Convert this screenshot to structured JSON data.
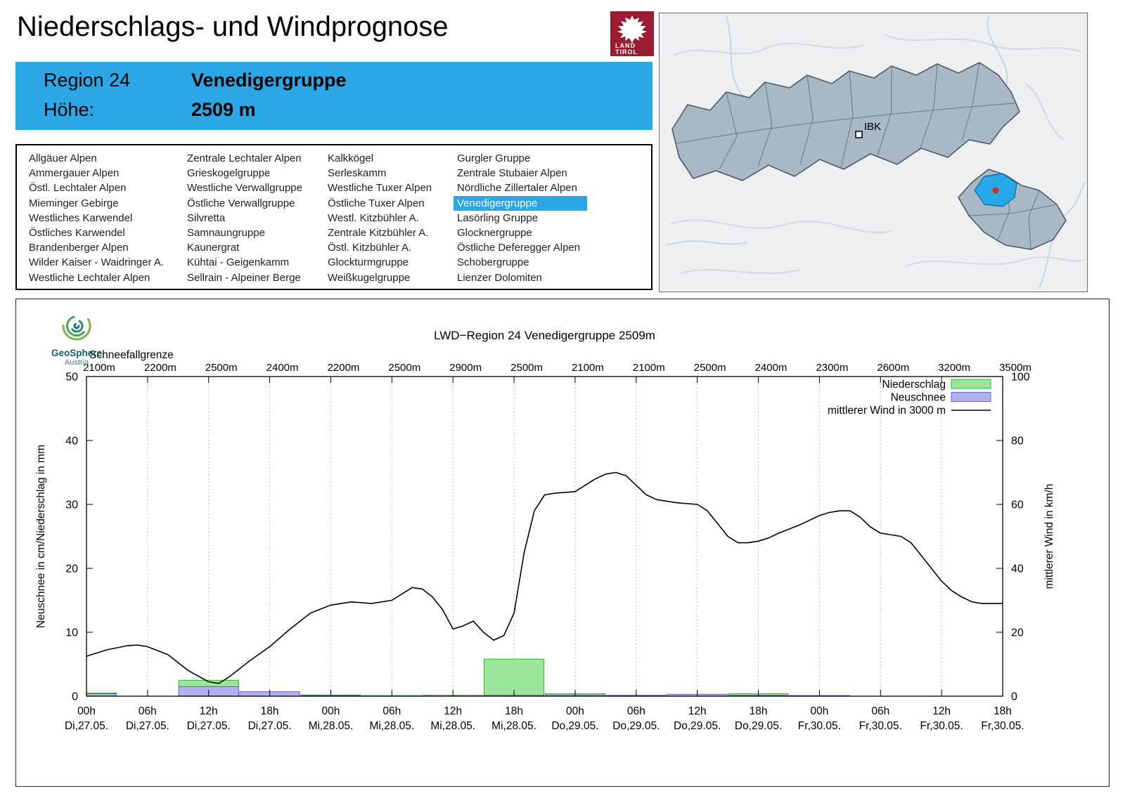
{
  "header": {
    "title": "Niederschlags- und Windprognose",
    "logo_line1": "LAND",
    "logo_line2": "TIROL"
  },
  "region_info": {
    "region_label": "Region 24",
    "region_name": "Venedigergruppe",
    "altitude_label": "Höhe:",
    "altitude_value": "2509 m"
  },
  "region_list": {
    "selected": "Venedigergruppe",
    "columns": [
      [
        "Allgäuer Alpen",
        "Ammergauer Alpen",
        "Östl. Lechtaler Alpen",
        "Mieminger Gebirge",
        "Westliches Karwendel",
        "Östliches Karwendel",
        "Brandenberger Alpen",
        "Wilder Kaiser - Waidringer A.",
        "Westliche Lechtaler Alpen"
      ],
      [
        "Zentrale Lechtaler Alpen",
        "Grieskogelgruppe",
        "Westliche Verwallgruppe",
        "Östliche Verwallgruppe",
        "Silvretta",
        "Samnaungruppe",
        "Kaunergrat",
        "Kühtai - Geigenkamm",
        "Sellrain - Alpeiner Berge"
      ],
      [
        "Kalkkögel",
        "Serleskamm",
        "Westliche Tuxer Alpen",
        "Östliche Tuxer Alpen",
        "Westl. Kitzbühler A.",
        "Zentrale Kitzbühler A.",
        "Östl. Kitzbühler A.",
        "Glockturmgruppe",
        "Weißkugelgruppe"
      ],
      [
        "Gurgler Gruppe",
        "Zentrale Stubaier Alpen",
        "Nördliche Zillertaler Alpen",
        "Venedigergruppe",
        "Lasörling Gruppe",
        "Glocknergruppe",
        "Östliche Deferegger Alpen",
        "Schobergruppe",
        "Lienzer Dolomiten"
      ]
    ]
  },
  "map": {
    "city_label": "IBK",
    "highlight_color": "#29a8e8"
  },
  "chart": {
    "brand": "GeoSphere",
    "brand_sub": "Austria"
  },
  "chart_data": {
    "type": "bar",
    "title": "LWD−Region 24 Venedigergruppe 2509m",
    "snowline_label": "Schneefallgrenze",
    "snowline_values": [
      "2100m",
      "2200m",
      "2500m",
      "2400m",
      "2200m",
      "2500m",
      "2900m",
      "2500m",
      "2100m",
      "2100m",
      "2500m",
      "2400m",
      "2300m",
      "2600m",
      "3200m",
      "3500m"
    ],
    "ylabel_left": "Neuschnee in cm/Niederschlag in mm",
    "ylabel_right": "mittlerer Wind in km/h",
    "ylim_left": [
      0,
      50
    ],
    "ylim_right": [
      0,
      100
    ],
    "yticks_left": [
      0,
      10,
      20,
      30,
      40,
      50
    ],
    "yticks_right": [
      0,
      20,
      40,
      60,
      80,
      100
    ],
    "x_hours_max": 90,
    "x_tick_hours": [
      0,
      6,
      12,
      18,
      24,
      30,
      36,
      42,
      48,
      54,
      60,
      66,
      72,
      78,
      84,
      90
    ],
    "x_tick_time": [
      "00h",
      "06h",
      "12h",
      "18h",
      "00h",
      "06h",
      "12h",
      "18h",
      "00h",
      "06h",
      "12h",
      "18h",
      "00h",
      "06h",
      "12h",
      "18h"
    ],
    "x_tick_date": [
      "Di,27.05.",
      "Di,27.05.",
      "Di,27.05.",
      "Di,27.05.",
      "Mi,28.05.",
      "Mi,28.05.",
      "Mi,28.05.",
      "Mi,28.05.",
      "Do,29.05.",
      "Do,29.05.",
      "Do,29.05.",
      "Do,29.05.",
      "Fr,30.05.",
      "Fr,30.05.",
      "Fr,30.05.",
      "Fr,30.05."
    ],
    "series": [
      {
        "name": "Niederschlag",
        "type": "bar",
        "axis": "left",
        "color": "#9ce69c",
        "border": "#2db82d",
        "values": [
          0.5,
          0,
          2.5,
          0.2,
          0.2,
          0.1,
          0.15,
          5.8,
          0.4,
          0.15,
          0.2,
          0.4,
          0.1,
          0,
          0,
          0
        ]
      },
      {
        "name": "Neuschnee",
        "type": "bar",
        "axis": "left",
        "color": "#b0b0ee",
        "border": "#6060d8",
        "values": [
          0.4,
          0,
          1.5,
          0.7,
          0.1,
          0,
          0,
          0.15,
          0.2,
          0.1,
          0.3,
          0.15,
          0.1,
          0,
          0,
          0
        ]
      },
      {
        "name": "mittlerer Wind in 3000 m",
        "type": "line",
        "axis": "right",
        "color": "#000000",
        "points": [
          [
            0,
            12.5
          ],
          [
            2,
            14.5
          ],
          [
            4,
            15.8
          ],
          [
            5,
            16
          ],
          [
            6,
            15.5
          ],
          [
            8,
            13
          ],
          [
            10,
            8
          ],
          [
            12,
            4.5
          ],
          [
            13,
            4
          ],
          [
            14,
            6
          ],
          [
            16,
            11
          ],
          [
            18,
            15.5
          ],
          [
            20,
            21
          ],
          [
            22,
            26
          ],
          [
            24,
            28.5
          ],
          [
            26,
            29.5
          ],
          [
            28,
            29
          ],
          [
            30,
            30
          ],
          [
            31,
            32
          ],
          [
            32,
            34
          ],
          [
            33,
            33.5
          ],
          [
            34,
            31
          ],
          [
            35,
            27
          ],
          [
            36,
            21
          ],
          [
            37,
            22
          ],
          [
            38,
            23.5
          ],
          [
            39,
            20
          ],
          [
            40,
            17.5
          ],
          [
            41,
            19
          ],
          [
            42,
            26
          ],
          [
            43,
            45
          ],
          [
            44,
            58
          ],
          [
            45,
            63
          ],
          [
            46,
            63.5
          ],
          [
            48,
            64
          ],
          [
            50,
            68
          ],
          [
            51,
            69.5
          ],
          [
            52,
            70
          ],
          [
            53,
            69
          ],
          [
            54,
            66
          ],
          [
            55,
            63
          ],
          [
            56,
            61.5
          ],
          [
            58,
            60.5
          ],
          [
            60,
            60
          ],
          [
            61,
            58
          ],
          [
            62,
            54
          ],
          [
            63,
            50
          ],
          [
            64,
            48
          ],
          [
            65,
            48
          ],
          [
            66,
            48.5
          ],
          [
            67,
            49.5
          ],
          [
            68,
            51
          ],
          [
            70,
            53.5
          ],
          [
            72,
            56.5
          ],
          [
            73,
            57.5
          ],
          [
            74,
            58
          ],
          [
            75,
            58
          ],
          [
            76,
            56
          ],
          [
            77,
            53
          ],
          [
            78,
            51
          ],
          [
            80,
            50
          ],
          [
            81,
            48
          ],
          [
            82,
            44
          ],
          [
            83,
            40
          ],
          [
            84,
            36
          ],
          [
            85,
            33
          ],
          [
            86,
            31
          ],
          [
            87,
            29.5
          ],
          [
            88,
            29
          ],
          [
            90,
            29
          ]
        ]
      }
    ]
  }
}
